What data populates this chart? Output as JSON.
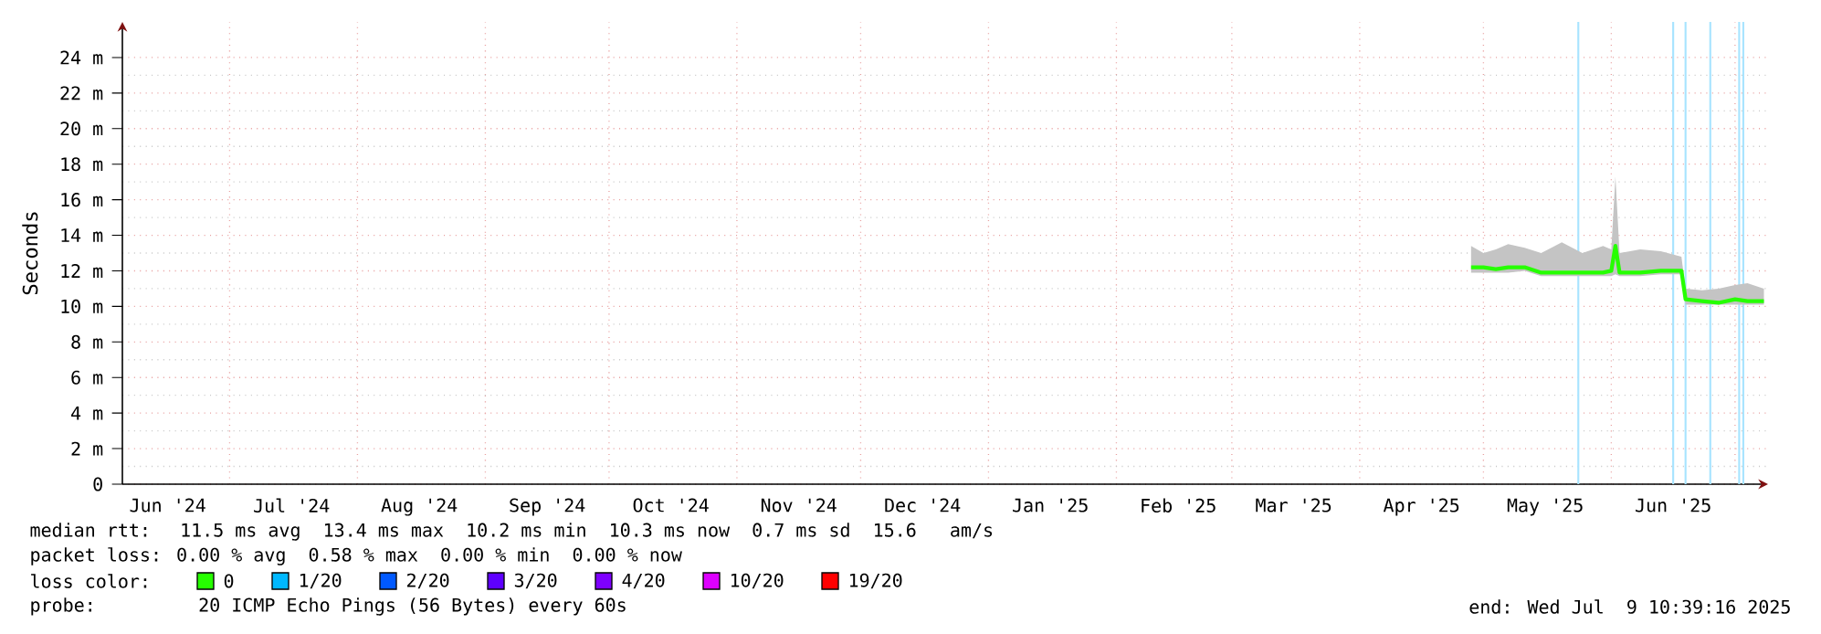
{
  "chart_data": {
    "type": "line",
    "ylabel": "Seconds",
    "x": [
      "2025-04-28",
      "2025-05-01",
      "2025-05-04",
      "2025-05-07",
      "2025-05-11",
      "2025-05-15",
      "2025-05-20",
      "2025-05-25",
      "2025-05-30",
      "2025-06-01",
      "2025-06-02",
      "2025-06-03",
      "2025-06-08",
      "2025-06-13",
      "2025-06-18",
      "2025-06-19",
      "2025-06-23",
      "2025-06-27",
      "2025-07-01",
      "2025-07-04",
      "2025-07-08"
    ],
    "series": [
      {
        "name": "0",
        "color": "#26ff00",
        "values": [
          12.2,
          12.2,
          12.1,
          12.2,
          12.2,
          11.9,
          11.9,
          11.9,
          11.9,
          12.0,
          13.4,
          11.9,
          11.9,
          12.0,
          12.0,
          10.4,
          10.3,
          10.2,
          10.4,
          10.3,
          10.3
        ],
        "lower": [
          11.9,
          11.9,
          11.9,
          11.9,
          12.0,
          11.7,
          11.7,
          11.7,
          11.7,
          11.7,
          11.8,
          11.7,
          11.7,
          11.8,
          11.8,
          10.1,
          10.1,
          10.1,
          10.1,
          10.1,
          10.1
        ],
        "upper": [
          13.4,
          13.0,
          13.2,
          13.5,
          13.3,
          13.0,
          13.6,
          13.0,
          13.4,
          13.2,
          17.3,
          13.0,
          13.2,
          13.1,
          12.8,
          11.0,
          10.9,
          11.0,
          11.2,
          11.3,
          11.0
        ]
      },
      {
        "name": "1/20",
        "color": "#00b8ff",
        "values": [
          null,
          null,
          null,
          null,
          null,
          null,
          null,
          null,
          null,
          null,
          null,
          null,
          null,
          null,
          null,
          null,
          null,
          null,
          null,
          null,
          null
        ]
      },
      {
        "name": "2/20",
        "color": "#0059ff",
        "values": [
          null,
          null,
          null,
          null,
          null,
          null,
          null,
          null,
          null,
          null,
          null,
          null,
          null,
          null,
          null,
          null,
          null,
          null,
          null,
          null,
          null
        ]
      },
      {
        "name": "3/20",
        "color": "#5e00ff",
        "values": [
          null,
          null,
          null,
          null,
          null,
          null,
          null,
          null,
          null,
          null,
          null,
          null,
          null,
          null,
          null,
          null,
          null,
          null,
          null,
          null,
          null
        ]
      },
      {
        "name": "4/20",
        "color": "#7e00ff",
        "values": [
          null,
          null,
          null,
          null,
          null,
          null,
          null,
          null,
          null,
          null,
          null,
          null,
          null,
          null,
          null,
          null,
          null,
          null,
          null,
          null,
          null
        ]
      },
      {
        "name": "10/20",
        "color": "#dd00ff",
        "values": [
          null,
          null,
          null,
          null,
          null,
          null,
          null,
          null,
          null,
          null,
          null,
          null,
          null,
          null,
          null,
          null,
          null,
          null,
          null,
          null,
          null
        ]
      },
      {
        "name": "19/20",
        "color": "#ff0000",
        "values": [
          null,
          null,
          null,
          null,
          null,
          null,
          null,
          null,
          null,
          null,
          null,
          null,
          null,
          null,
          null,
          null,
          null,
          null,
          null,
          null,
          null
        ]
      }
    ],
    "xlim": [
      "2024-06-05",
      "2025-07-09"
    ],
    "xticks": [
      {
        "value": "2024-06-16",
        "label": "Jun '24"
      },
      {
        "value": "2024-07-01",
        "label": null
      },
      {
        "value": "2024-07-16",
        "label": "Jul '24"
      },
      {
        "value": "2024-08-01",
        "label": null
      },
      {
        "value": "2024-08-16",
        "label": "Aug '24"
      },
      {
        "value": "2024-09-01",
        "label": null
      },
      {
        "value": "2024-09-16",
        "label": "Sep '24"
      },
      {
        "value": "2024-10-01",
        "label": null
      },
      {
        "value": "2024-10-16",
        "label": "Oct '24"
      },
      {
        "value": "2024-11-01",
        "label": null
      },
      {
        "value": "2024-11-16",
        "label": "Nov '24"
      },
      {
        "value": "2024-12-01",
        "label": null
      },
      {
        "value": "2024-12-16",
        "label": "Dec '24"
      },
      {
        "value": "2025-01-01",
        "label": null
      },
      {
        "value": "2025-01-16",
        "label": "Jan '25"
      },
      {
        "value": "2025-02-01",
        "label": null
      },
      {
        "value": "2025-02-16",
        "label": "Feb '25"
      },
      {
        "value": "2025-03-01",
        "label": null
      },
      {
        "value": "2025-03-16",
        "label": "Mar '25"
      },
      {
        "value": "2025-04-01",
        "label": null
      },
      {
        "value": "2025-04-16",
        "label": "Apr '25"
      },
      {
        "value": "2025-05-01",
        "label": null
      },
      {
        "value": "2025-05-16",
        "label": "May '25"
      },
      {
        "value": "2025-06-01",
        "label": null
      },
      {
        "value": "2025-06-16",
        "label": "Jun '25"
      },
      {
        "value": "2025-07-01",
        "label": null
      }
    ],
    "ylim": [
      0,
      26
    ],
    "yticks": [
      0,
      {
        "value": 2,
        "label": "2 m"
      },
      {
        "value": 4,
        "label": "4 m"
      },
      {
        "value": 6,
        "label": "6 m"
      },
      {
        "value": 8,
        "label": "8 m"
      },
      {
        "value": 10,
        "label": "10 m"
      },
      {
        "value": 12,
        "label": "12 m"
      },
      {
        "value": 14,
        "label": "14 m"
      },
      {
        "value": 16,
        "label": "16 m"
      },
      {
        "value": 18,
        "label": "18 m"
      },
      {
        "value": 20,
        "label": "20 m"
      },
      {
        "value": 22,
        "label": "22 m"
      },
      {
        "value": 24,
        "label": "24 m"
      }
    ],
    "ref_lines": [
      {
        "axis": "x",
        "value": "2025-05-24",
        "color": "#a8e4ff"
      },
      {
        "axis": "x",
        "value": "2025-06-16",
        "color": "#a8e4ff"
      },
      {
        "axis": "x",
        "value": "2025-06-19",
        "color": "#a8e4ff"
      },
      {
        "axis": "x",
        "value": "2025-06-25",
        "color": "#a8e4ff"
      },
      {
        "axis": "x",
        "value": "2025-07-02",
        "color": "#a8e4ff"
      },
      {
        "axis": "x",
        "value": "2025-07-03",
        "color": "#a8e4ff"
      }
    ],
    "grid": true,
    "legend": "bottom",
    "legend_title": "loss color:",
    "annotations": [
      "median rtt:  11.5 ms avg  13.4 ms max  10.2 ms min  10.3 ms now  0.7 ms sd  15.6   am/s",
      "packet loss: 0.00 % avg  0.58 % max  0.00 % min  0.00 % now",
      "probe:       20 ICMP Echo Pings (56 Bytes) every 60s",
      "end: Wed Jul  9 10:39:16 2025"
    ]
  }
}
